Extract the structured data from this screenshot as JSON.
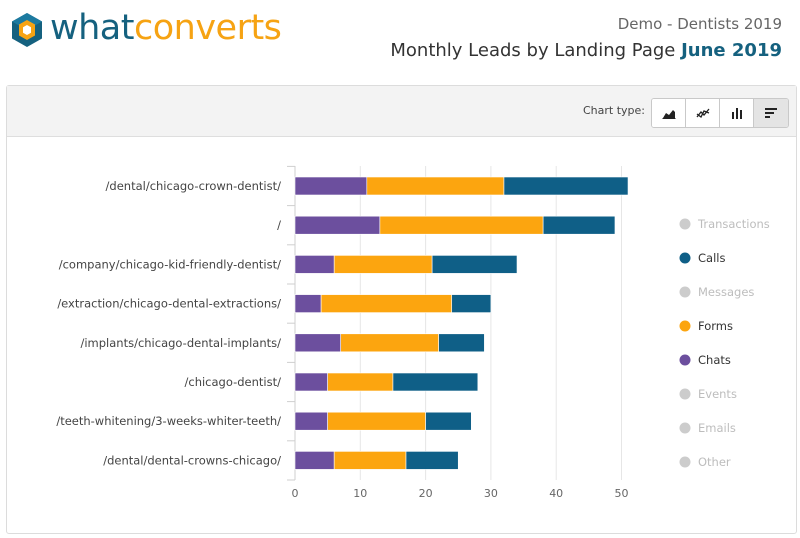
{
  "header": {
    "brand_what": "what",
    "brand_converts": "converts",
    "account": "Demo - Dentists 2019",
    "report_title": "Monthly Leads by Landing Page",
    "month": "June 2019"
  },
  "toolbar": {
    "chart_type_label": "Chart type:",
    "buttons": [
      "area-chart-icon",
      "line-chart-icon",
      "column-chart-icon",
      "bar-chart-icon"
    ],
    "active": "bar-chart-icon"
  },
  "colors": {
    "brand_blue": "#15617f",
    "brand_orange": "#f6a313",
    "chats": "#6c4f9e",
    "forms": "#fca50f",
    "calls": "#0f5f87",
    "disabled": "#cccccc"
  },
  "chart_data": {
    "type": "bar",
    "orientation": "horizontal",
    "stacked": true,
    "categories": [
      "/dental/chicago-crown-dentist/",
      "/",
      "/company/chicago-kid-friendly-dentist/",
      "/extraction/chicago-dental-extractions/",
      "/implants/chicago-dental-implants/",
      "/chicago-dentist/",
      "/teeth-whitening/3-weeks-whiter-teeth/",
      "/dental/dental-crowns-chicago/"
    ],
    "series": [
      {
        "name": "Chats",
        "color": "#6c4f9e",
        "values": [
          11,
          13,
          6,
          4,
          7,
          5,
          5,
          6
        ]
      },
      {
        "name": "Forms",
        "color": "#fca50f",
        "values": [
          21,
          25,
          15,
          20,
          15,
          10,
          15,
          11
        ]
      },
      {
        "name": "Calls",
        "color": "#0f5f87",
        "values": [
          19,
          11,
          13,
          6,
          7,
          13,
          7,
          8
        ]
      }
    ],
    "xlim": [
      0,
      50
    ],
    "xticks": [
      0,
      10,
      20,
      30,
      40,
      50
    ],
    "grid": true,
    "legend": {
      "position": "right",
      "items": [
        {
          "name": "Transactions",
          "active": false
        },
        {
          "name": "Calls",
          "active": true,
          "color": "#0f5f87"
        },
        {
          "name": "Messages",
          "active": false
        },
        {
          "name": "Forms",
          "active": true,
          "color": "#fca50f"
        },
        {
          "name": "Chats",
          "active": true,
          "color": "#6c4f9e"
        },
        {
          "name": "Events",
          "active": false
        },
        {
          "name": "Emails",
          "active": false
        },
        {
          "name": "Other",
          "active": false
        }
      ]
    }
  }
}
